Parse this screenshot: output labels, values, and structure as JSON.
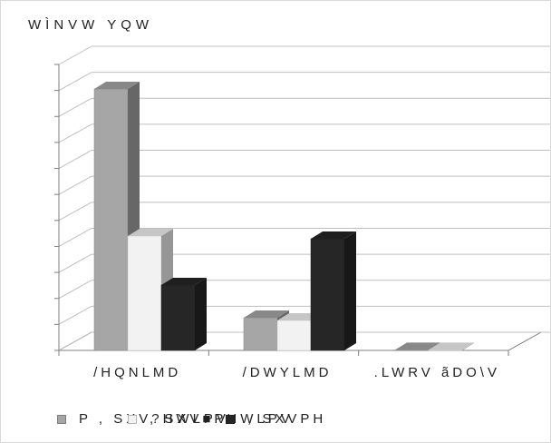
{
  "chart_data": {
    "type": "bar",
    "title": "WÌNVW YQW",
    "categories": [
      "/HQNLMD",
      "/DWYLMD",
      ".LWRV ãDO\\V"
    ],
    "series": [
      {
        "name": "P , SXV?HWLPV",
        "color": "#a6a6a6",
        "values": [
          9.6,
          1.2,
          0.02
        ]
      },
      {
        "name": ", SXV■PHWLPV",
        "color": "#f2f2f2",
        "values": [
          4.2,
          1.1,
          0.02
        ]
      },
      {
        "name": ", SXVPH",
        "color": "#262626",
        "values": [
          2.4,
          4.1,
          0
        ]
      }
    ],
    "ylim": [
      0,
      10.5
    ],
    "yticks": 11,
    "grid": true,
    "legend_position": "bottom"
  }
}
